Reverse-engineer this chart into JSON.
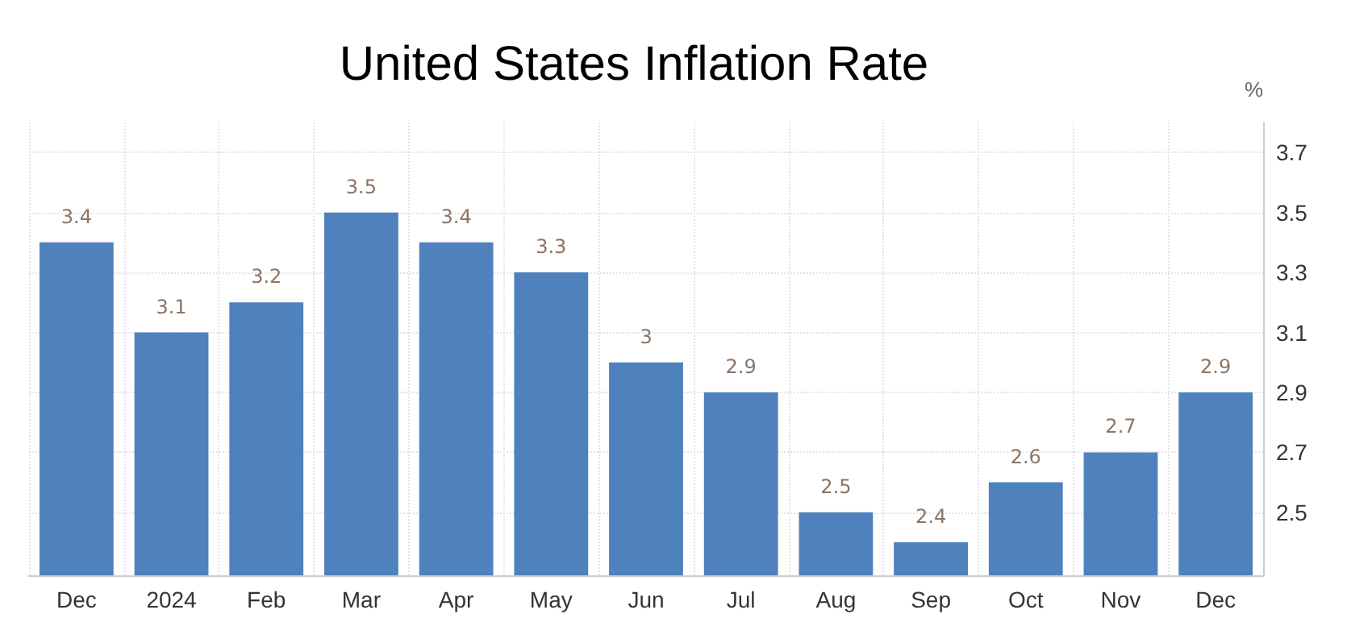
{
  "chart_data": {
    "type": "bar",
    "title": "United States Inflation Rate",
    "ylabel": "%",
    "categories": [
      "Dec",
      "2024",
      "Feb",
      "Mar",
      "Apr",
      "May",
      "Jun",
      "Jul",
      "Aug",
      "Sep",
      "Oct",
      "Nov",
      "Dec"
    ],
    "values": [
      3.4,
      3.1,
      3.2,
      3.5,
      3.4,
      3.3,
      3,
      2.9,
      2.5,
      2.4,
      2.6,
      2.7,
      2.9
    ],
    "color": "#4f81bd",
    "ylim": [
      2.29,
      3.8
    ],
    "yticks": [
      2.5,
      2.7,
      2.9,
      3.1,
      3.3,
      3.5,
      3.7
    ],
    "grid": true,
    "data_labels": true
  }
}
